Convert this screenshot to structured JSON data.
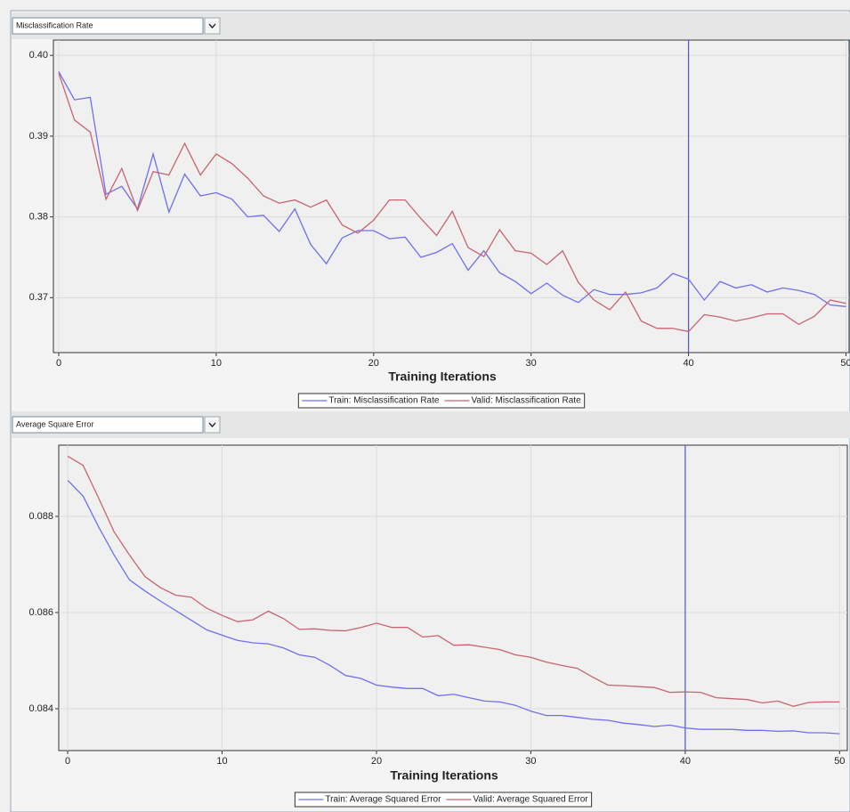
{
  "chart_data": [
    {
      "type": "line",
      "selector": "Misclassification Rate",
      "x_label": "Training Iterations",
      "x": [
        0,
        1,
        2,
        3,
        4,
        5,
        6,
        7,
        8,
        9,
        10,
        11,
        12,
        13,
        14,
        15,
        16,
        17,
        18,
        19,
        20,
        21,
        22,
        23,
        24,
        25,
        26,
        27,
        28,
        29,
        30,
        31,
        32,
        33,
        34,
        35,
        36,
        37,
        38,
        39,
        40,
        41,
        42,
        43,
        44,
        45,
        46,
        47,
        48,
        49,
        50
      ],
      "series": [
        {
          "name": "Train: Misclassification Rate",
          "color": "#6f6ff0",
          "values": [
            0.398,
            0.3945,
            0.3948,
            0.3828,
            0.3838,
            0.381,
            0.3878,
            0.3806,
            0.3853,
            0.3826,
            0.383,
            0.3822,
            0.38,
            0.3802,
            0.3782,
            0.381,
            0.3766,
            0.3742,
            0.3774,
            0.3783,
            0.3783,
            0.3773,
            0.3775,
            0.375,
            0.3756,
            0.3767,
            0.3734,
            0.3758,
            0.3731,
            0.372,
            0.3705,
            0.3718,
            0.3703,
            0.3694,
            0.371,
            0.3704,
            0.3704,
            0.3706,
            0.3712,
            0.373,
            0.3723,
            0.3697,
            0.372,
            0.3712,
            0.3716,
            0.3707,
            0.3712,
            0.3709,
            0.3704,
            0.3691,
            0.3689
          ]
        },
        {
          "name": "Valid: Misclassification Rate",
          "color": "#c86470",
          "values": [
            0.3978,
            0.392,
            0.3905,
            0.3822,
            0.386,
            0.3808,
            0.3856,
            0.3852,
            0.3891,
            0.3852,
            0.3878,
            0.3866,
            0.3848,
            0.3826,
            0.3817,
            0.3821,
            0.3812,
            0.3821,
            0.379,
            0.378,
            0.3796,
            0.3821,
            0.3821,
            0.3798,
            0.3777,
            0.3807,
            0.3762,
            0.3751,
            0.3784,
            0.3758,
            0.3755,
            0.3741,
            0.3758,
            0.3719,
            0.3697,
            0.3685,
            0.3707,
            0.3671,
            0.3662,
            0.3662,
            0.3658,
            0.3679,
            0.3676,
            0.3671,
            0.3675,
            0.368,
            0.368,
            0.3667,
            0.3677,
            0.3697,
            0.3693
          ]
        }
      ],
      "xlim": [
        -0.34,
        50.2
      ],
      "xticks": [
        0,
        10,
        20,
        30,
        40,
        50
      ],
      "ylim": [
        0.3632,
        0.4019
      ],
      "yticks": [
        0.37,
        0.38,
        0.39,
        {
          "value": 0.4,
          "label": "0.40"
        }
      ],
      "grid": true,
      "reference_x": 40,
      "reference_color": "#5050f0",
      "legend": "bottom"
    },
    {
      "type": "line",
      "selector": "Average Square Error",
      "x_label": "Training Iterations",
      "x": [
        0,
        1,
        2,
        3,
        4,
        5,
        6,
        7,
        8,
        9,
        10,
        11,
        12,
        13,
        14,
        15,
        16,
        17,
        18,
        19,
        20,
        21,
        22,
        23,
        24,
        25,
        26,
        27,
        28,
        29,
        30,
        31,
        32,
        33,
        34,
        35,
        36,
        37,
        38,
        39,
        40,
        41,
        42,
        43,
        44,
        45,
        46,
        47,
        48,
        49,
        50
      ],
      "series": [
        {
          "name": "Train: Average Squared Error",
          "color": "#6f6ff0",
          "values": [
            0.08875,
            0.08842,
            0.08778,
            0.0872,
            0.08668,
            0.08645,
            0.08624,
            0.08604,
            0.08584,
            0.08564,
            0.08553,
            0.08542,
            0.08537,
            0.08535,
            0.08526,
            0.08512,
            0.08507,
            0.0849,
            0.08469,
            0.08463,
            0.08449,
            0.08445,
            0.08442,
            0.08442,
            0.08427,
            0.0843,
            0.08423,
            0.08416,
            0.08414,
            0.08407,
            0.08395,
            0.08386,
            0.08386,
            0.08382,
            0.08378,
            0.08376,
            0.0837,
            0.08367,
            0.08363,
            0.08366,
            0.0836,
            0.08357,
            0.08357,
            0.08357,
            0.08355,
            0.08355,
            0.08353,
            0.08354,
            0.0835,
            0.0835,
            0.08348
          ]
        },
        {
          "name": "Valid: Average Squared Error",
          "color": "#c86470",
          "values": [
            0.08925,
            0.08906,
            0.08838,
            0.08768,
            0.0872,
            0.08675,
            0.08652,
            0.08636,
            0.08632,
            0.08609,
            0.08594,
            0.08581,
            0.08585,
            0.08603,
            0.08587,
            0.08565,
            0.08566,
            0.08563,
            0.08562,
            0.08569,
            0.08578,
            0.08569,
            0.08569,
            0.08549,
            0.08552,
            0.08532,
            0.08533,
            0.08528,
            0.08523,
            0.08512,
            0.08507,
            0.08497,
            0.0849,
            0.08484,
            0.08466,
            0.08449,
            0.08448,
            0.08446,
            0.08444,
            0.08434,
            0.08435,
            0.08434,
            0.08423,
            0.08421,
            0.08419,
            0.08412,
            0.08416,
            0.08405,
            0.08413,
            0.08414,
            0.08414
          ]
        }
      ],
      "xlim": [
        -0.58,
        50.5
      ],
      "xticks": [
        0,
        10,
        20,
        30,
        40,
        50
      ],
      "ylim": [
        0.08313,
        0.08948
      ],
      "yticks": [
        0.084,
        0.086,
        0.088
      ],
      "grid": true,
      "reference_x": 40,
      "reference_color": "#5050f0",
      "legend": "bottom"
    }
  ]
}
